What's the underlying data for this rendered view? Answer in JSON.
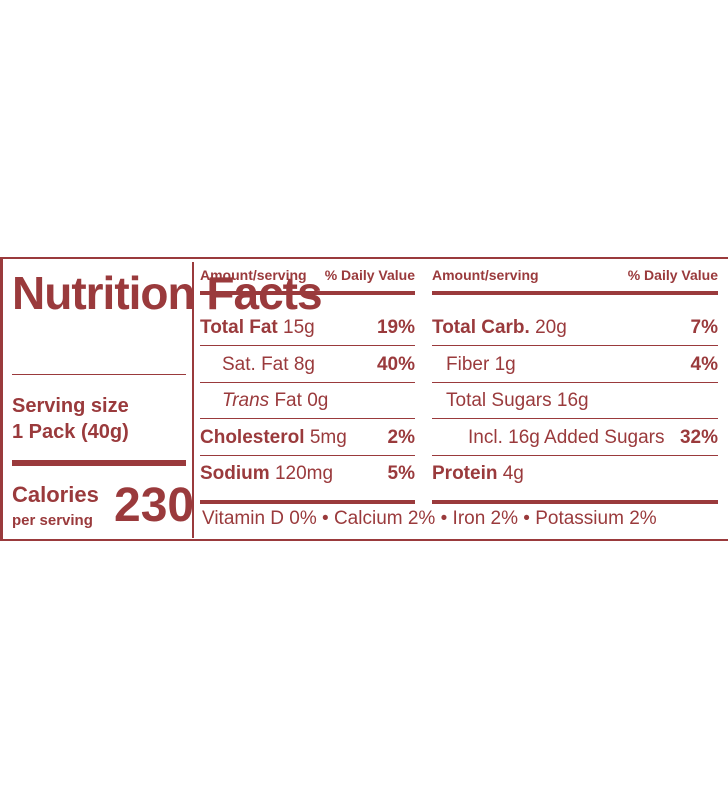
{
  "title": "Nutrition Facts",
  "serving": {
    "label": "Serving size",
    "amount": "1 Pack (40g)"
  },
  "calories": {
    "label": "Calories",
    "sublabel": "per serving",
    "value": 230
  },
  "columns": [
    {
      "header": {
        "amount": "Amount/serving",
        "dv": "% Daily Value"
      },
      "rows": [
        {
          "name": "Total Fat",
          "amount": "15g",
          "dv": "19%"
        },
        {
          "name": "Sat. Fat",
          "amount": "8g",
          "dv": "40%"
        },
        {
          "prefix": "Trans",
          "name": "Fat",
          "amount": "0g"
        },
        {
          "name": "Cholesterol",
          "amount": "5mg",
          "dv": "2%"
        },
        {
          "name": "Sodium",
          "amount": "120mg",
          "dv": "5%"
        }
      ]
    },
    {
      "header": {
        "amount": "Amount/serving",
        "dv": "% Daily Value"
      },
      "rows": [
        {
          "name": "Total Carb.",
          "amount": "20g",
          "dv": "7%"
        },
        {
          "name": "Fiber",
          "amount": "1g",
          "dv": "4%"
        },
        {
          "name": "Total Sugars",
          "amount": "16g"
        },
        {
          "name": "Incl. 16g Added Sugars",
          "dv": "32%"
        },
        {
          "name": "Protein",
          "amount": "4g"
        }
      ]
    }
  ],
  "micronutrients": "Vitamin D 0% • Calcium 2% • Iron 2% • Potassium 2%"
}
